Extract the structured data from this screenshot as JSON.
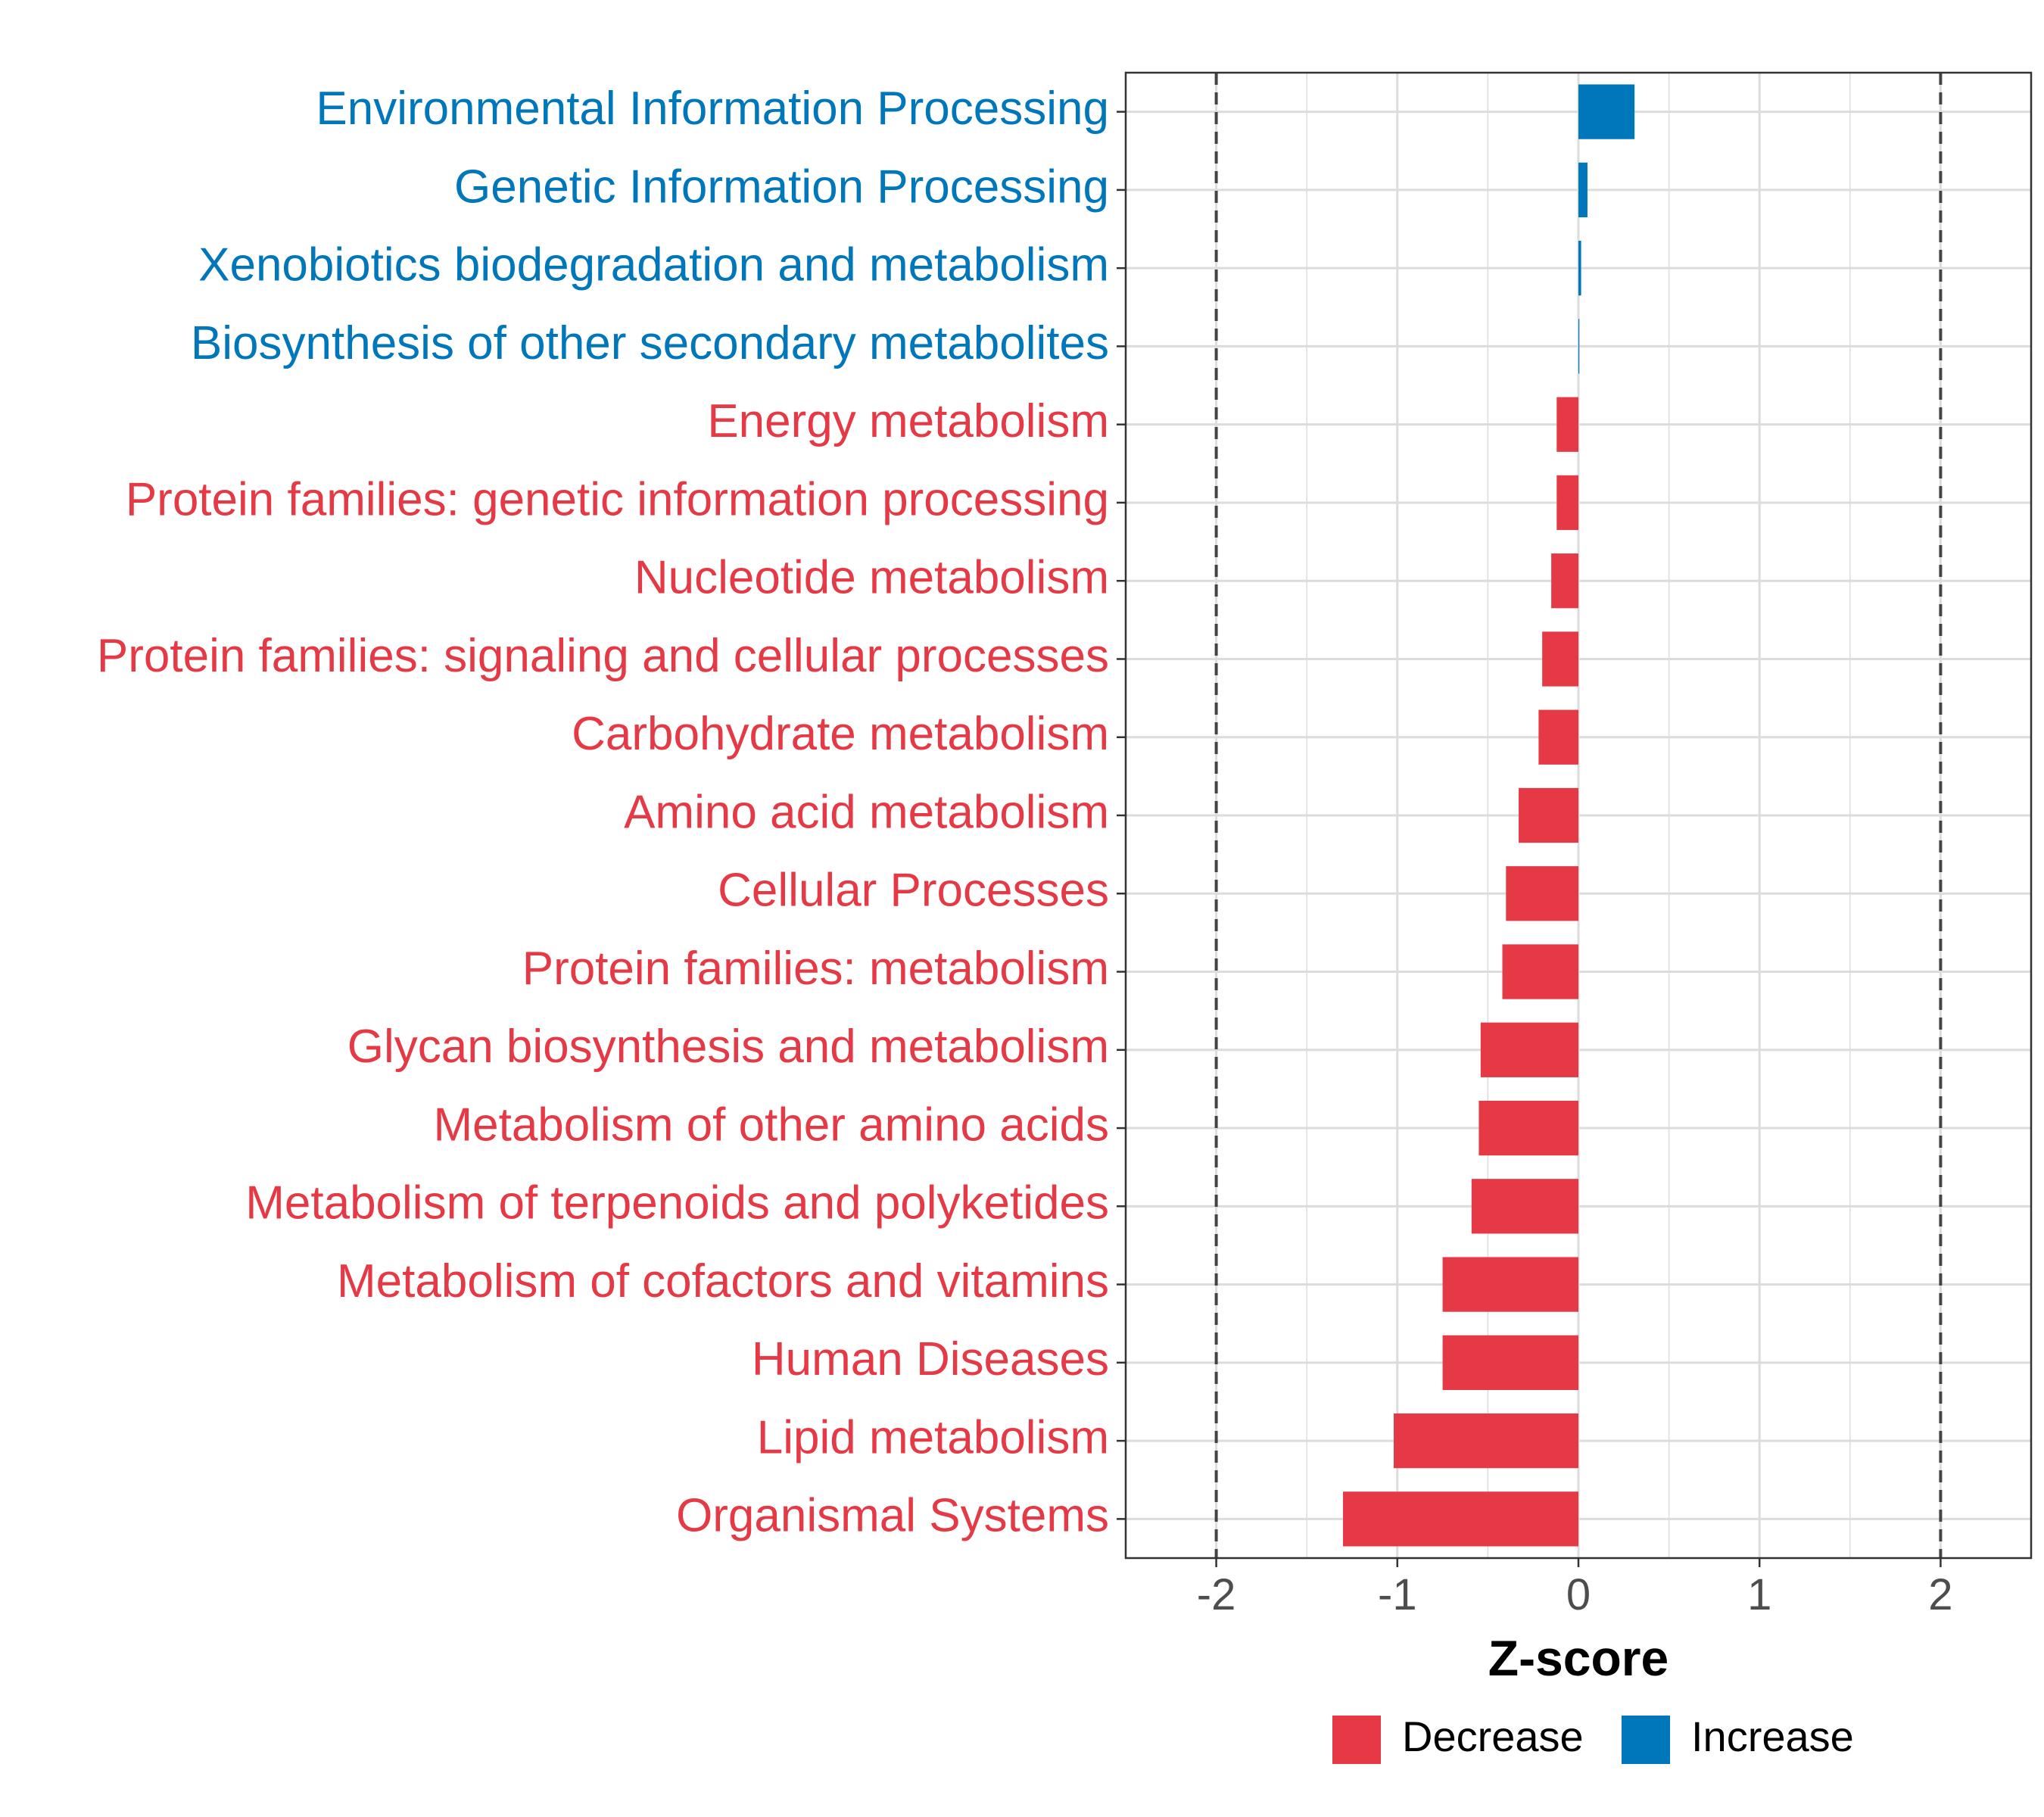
{
  "chart_data": {
    "type": "bar",
    "orientation": "horizontal",
    "title": "",
    "xlabel": "Z-score",
    "ylabel": "",
    "xlim": [
      -2.5,
      2.5
    ],
    "xticks": [
      -2,
      -1,
      0,
      1,
      2
    ],
    "xtick_labels": [
      "-2",
      "-1",
      "0",
      "1",
      "2"
    ],
    "reference_lines": [
      -2,
      2
    ],
    "grid": true,
    "legend_position": "bottom",
    "legend": [
      {
        "label": "Decrease",
        "color": "#e63946"
      },
      {
        "label": "Increase",
        "color": "#0077bb"
      }
    ],
    "colors": {
      "Decrease": "#e63946",
      "Increase": "#0077bb"
    },
    "categories": [
      "Environmental Information Processing",
      "Genetic Information Processing",
      "Xenobiotics biodegradation and metabolism",
      "Biosynthesis of other secondary metabolites",
      "Energy metabolism",
      "Protein families: genetic information processing",
      "Nucleotide metabolism",
      "Protein families: signaling and cellular processes",
      "Carbohydrate metabolism",
      "Amino acid metabolism",
      "Cellular Processes",
      "Protein families: metabolism",
      "Glycan biosynthesis and metabolism",
      "Metabolism of other amino acids",
      "Metabolism of terpenoids and polyketides",
      "Metabolism of cofactors and vitamins",
      "Human Diseases",
      "Lipid metabolism",
      "Organismal Systems"
    ],
    "values": [
      0.31,
      0.05,
      0.015,
      0.005,
      -0.12,
      -0.12,
      -0.15,
      -0.2,
      -0.22,
      -0.33,
      -0.4,
      -0.42,
      -0.54,
      -0.55,
      -0.59,
      -0.75,
      -0.75,
      -1.02,
      -1.3
    ],
    "groups": [
      "Increase",
      "Increase",
      "Increase",
      "Increase",
      "Decrease",
      "Decrease",
      "Decrease",
      "Decrease",
      "Decrease",
      "Decrease",
      "Decrease",
      "Decrease",
      "Decrease",
      "Decrease",
      "Decrease",
      "Decrease",
      "Decrease",
      "Decrease",
      "Decrease"
    ]
  }
}
